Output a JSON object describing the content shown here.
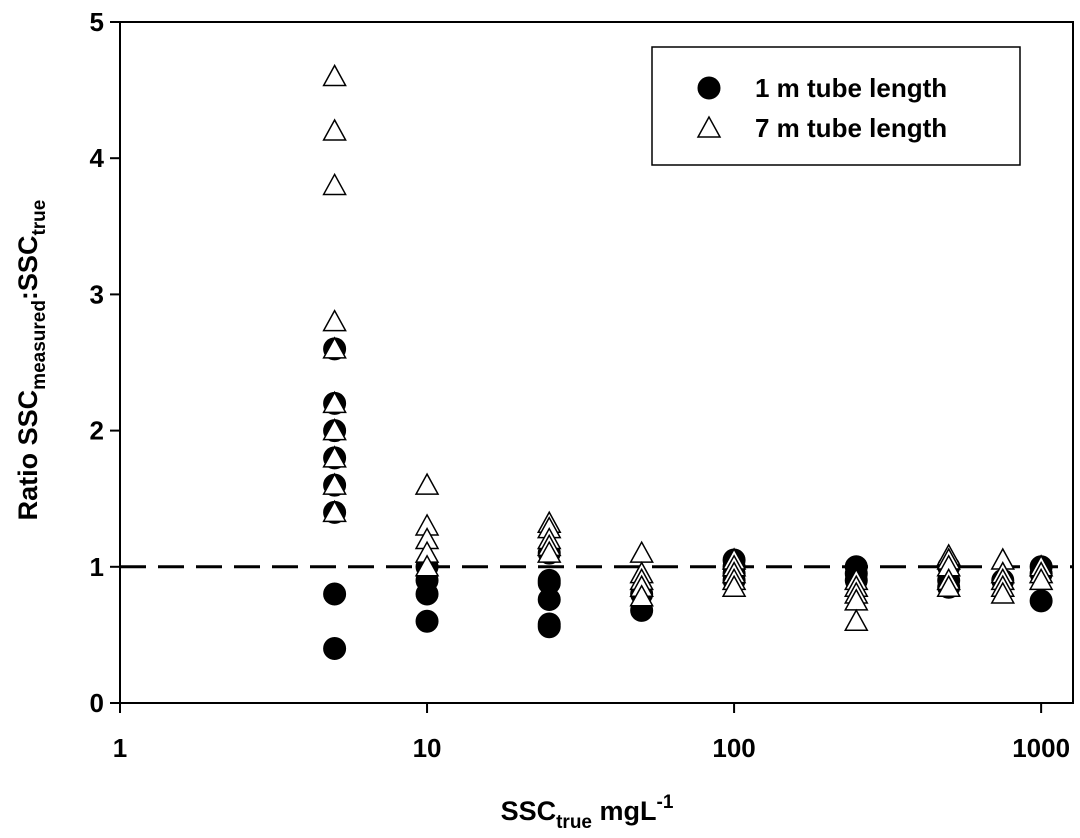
{
  "chart_data": {
    "type": "scatter",
    "xlabel": [
      "SSC",
      "true",
      " mgL",
      "-1"
    ],
    "ylabel": [
      "Ratio SSC",
      "measured",
      ":SSC",
      "true"
    ],
    "xscale": "log",
    "xlim": [
      1,
      1270
    ],
    "xticks": [
      1,
      10,
      100,
      1000
    ],
    "ylim": [
      0,
      5
    ],
    "yticks": [
      0,
      1,
      2,
      3,
      4,
      5
    ],
    "hline": 1,
    "legend": "upper right",
    "series": [
      {
        "name": "1 m tube length",
        "marker": "circle",
        "color": "#000000",
        "x": [
          5,
          5,
          5,
          5,
          5,
          5,
          5,
          5,
          10,
          10,
          10,
          10,
          25,
          25,
          25,
          25,
          25,
          25,
          50,
          50,
          100,
          100,
          100,
          100,
          250,
          250,
          250,
          500,
          500,
          500,
          750,
          1000,
          1000,
          1000
        ],
        "values": [
          2.6,
          2.2,
          2.0,
          1.8,
          1.6,
          1.4,
          0.8,
          0.4,
          1.0,
          0.9,
          0.8,
          0.6,
          1.1,
          0.9,
          0.88,
          0.76,
          0.58,
          0.56,
          0.8,
          0.68,
          1.05,
          1.0,
          0.95,
          0.9,
          1.0,
          0.95,
          0.9,
          1.0,
          0.9,
          0.85,
          0.9,
          1.0,
          0.95,
          0.75
        ]
      },
      {
        "name": "7 m tube length",
        "marker": "triangle",
        "color": "#ffffff",
        "x": [
          5,
          5,
          5,
          5,
          5,
          5,
          5,
          5,
          5,
          5,
          10,
          10,
          10,
          10,
          10,
          25,
          25,
          25,
          25,
          25,
          50,
          50,
          50,
          50,
          50,
          100,
          100,
          100,
          100,
          100,
          250,
          250,
          250,
          250,
          250,
          500,
          500,
          500,
          500,
          500,
          750,
          750,
          750,
          750,
          750,
          1000,
          1000,
          1000
        ],
        "values": [
          4.6,
          4.2,
          3.8,
          2.8,
          2.6,
          2.2,
          2.0,
          1.8,
          1.6,
          1.4,
          1.6,
          1.3,
          1.2,
          1.1,
          1.0,
          1.32,
          1.28,
          1.2,
          1.15,
          1.1,
          1.1,
          0.95,
          0.9,
          0.85,
          0.78,
          1.05,
          1.0,
          0.95,
          0.9,
          0.85,
          0.9,
          0.85,
          0.8,
          0.75,
          0.6,
          1.08,
          1.05,
          1.0,
          0.9,
          0.85,
          1.05,
          0.95,
          0.9,
          0.85,
          0.8,
          1.0,
          0.95,
          0.9
        ]
      }
    ]
  }
}
